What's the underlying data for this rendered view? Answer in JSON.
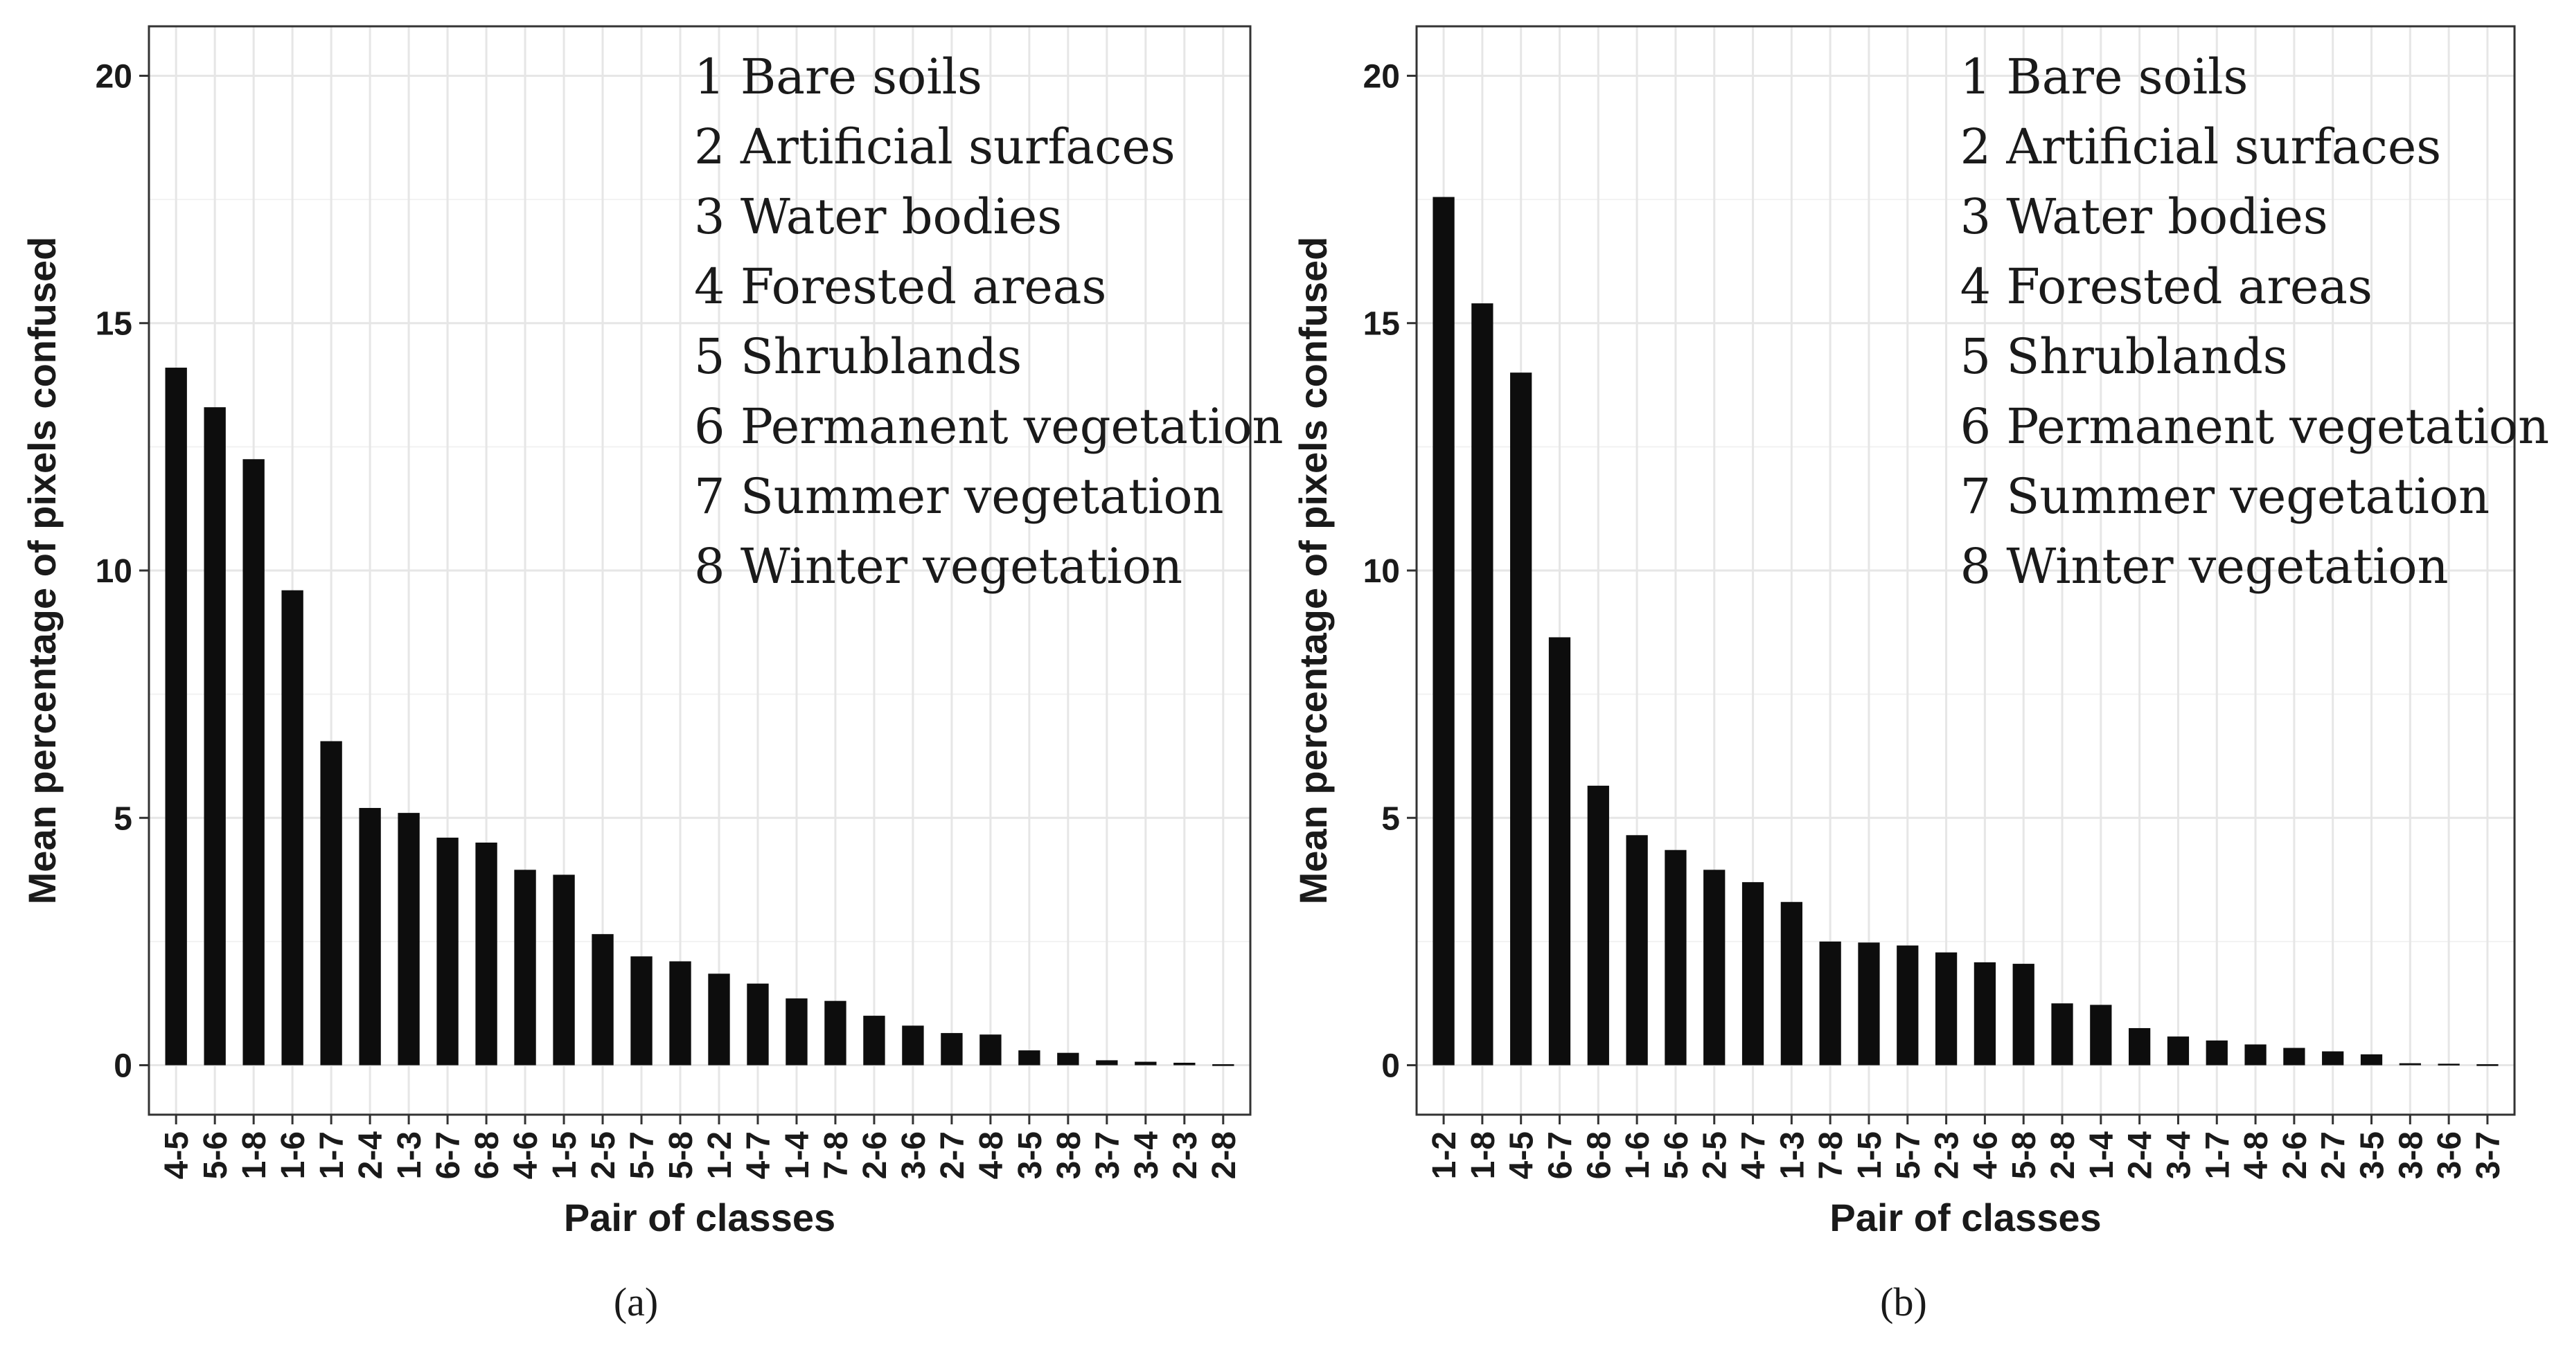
{
  "chart_data": [
    {
      "type": "bar",
      "panel_label": "(a)",
      "xlabel": "Pair of classes",
      "ylabel": "Mean percentage of pixels confused",
      "ylim": [
        -1,
        21
      ],
      "yticks": [
        0,
        5,
        10,
        15,
        20
      ],
      "grid": true,
      "legend_position": "top-right",
      "legend_lines": [
        "1 Bare soils",
        "2 Artificial surfaces",
        "3 Water bodies",
        "4 Forested areas",
        "5 Shrublands",
        "6 Permanent vegetation",
        "7 Summer vegetation",
        "8 Winter vegetation"
      ],
      "categories": [
        "4-5",
        "5-6",
        "1-8",
        "1-6",
        "1-7",
        "2-4",
        "1-3",
        "6-7",
        "6-8",
        "4-6",
        "1-5",
        "2-5",
        "5-7",
        "5-8",
        "1-2",
        "4-7",
        "1-4",
        "7-8",
        "2-6",
        "3-6",
        "2-7",
        "4-8",
        "3-5",
        "3-8",
        "3-7",
        "3-4",
        "2-3",
        "2-8"
      ],
      "values": [
        14.1,
        13.3,
        12.25,
        9.6,
        6.55,
        5.2,
        5.1,
        4.6,
        4.5,
        3.95,
        3.85,
        2.65,
        2.2,
        2.1,
        1.85,
        1.65,
        1.35,
        1.3,
        1.0,
        0.8,
        0.65,
        0.62,
        0.3,
        0.25,
        0.1,
        0.07,
        0.05,
        0.02
      ]
    },
    {
      "type": "bar",
      "panel_label": "(b)",
      "xlabel": "Pair of classes",
      "ylabel": "Mean percentage of pixels confused",
      "ylim": [
        -1,
        21
      ],
      "yticks": [
        0,
        5,
        10,
        15,
        20
      ],
      "grid": true,
      "legend_position": "top-right",
      "legend_lines": [
        "1 Bare soils",
        "2 Artificial surfaces",
        "3 Water bodies",
        "4 Forested areas",
        "5 Shrublands",
        "6 Permanent vegetation",
        "7 Summer vegetation",
        "8 Winter vegetation"
      ],
      "categories": [
        "1-2",
        "1-8",
        "4-5",
        "6-7",
        "6-8",
        "1-6",
        "5-6",
        "2-5",
        "4-7",
        "1-3",
        "7-8",
        "1-5",
        "5-7",
        "2-3",
        "4-6",
        "5-8",
        "2-8",
        "1-4",
        "2-4",
        "3-4",
        "1-7",
        "4-8",
        "2-6",
        "2-7",
        "3-5",
        "3-8",
        "3-6",
        "3-7"
      ],
      "values": [
        17.55,
        15.4,
        14.0,
        8.65,
        5.65,
        4.65,
        4.35,
        3.95,
        3.7,
        3.3,
        2.5,
        2.48,
        2.42,
        2.28,
        2.08,
        2.05,
        1.25,
        1.22,
        0.75,
        0.58,
        0.5,
        0.42,
        0.35,
        0.28,
        0.22,
        0.04,
        0.03,
        0.02
      ]
    }
  ]
}
